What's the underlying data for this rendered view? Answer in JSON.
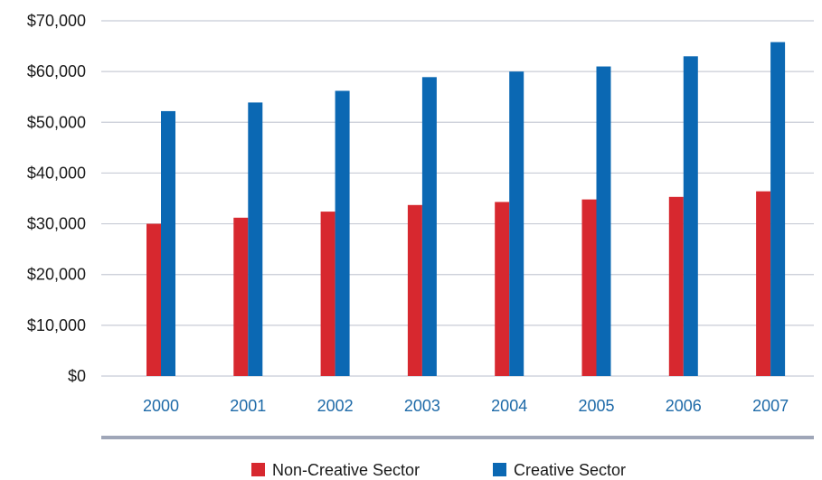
{
  "chart_data": {
    "type": "bar",
    "title": "",
    "xlabel": "",
    "ylabel": "",
    "categories": [
      "2000",
      "2001",
      "2002",
      "2003",
      "2004",
      "2005",
      "2006",
      "2007"
    ],
    "series": [
      {
        "name": "Non-Creative Sector",
        "color": "#d7282f",
        "values": [
          30000,
          31200,
          32400,
          33700,
          34300,
          34800,
          35300,
          36400
        ]
      },
      {
        "name": "Creative Sector",
        "color": "#0b68b3",
        "values": [
          52200,
          53900,
          56200,
          58900,
          60000,
          61000,
          63000,
          65800
        ]
      }
    ],
    "ylim": [
      0,
      70000
    ],
    "yticks": [
      "$0",
      "$10,000",
      "$20,000",
      "$30,000",
      "$40,000",
      "$50,000",
      "$60,000",
      "$70,000"
    ],
    "ytick_values": [
      0,
      10000,
      20000,
      30000,
      40000,
      50000,
      60000,
      70000
    ],
    "grid": true,
    "legend_position": "bottom-center",
    "xtick_color": "#1e6aa8",
    "grid_color": "#c8ccd6",
    "baseline_color": "#9fa6b8"
  }
}
